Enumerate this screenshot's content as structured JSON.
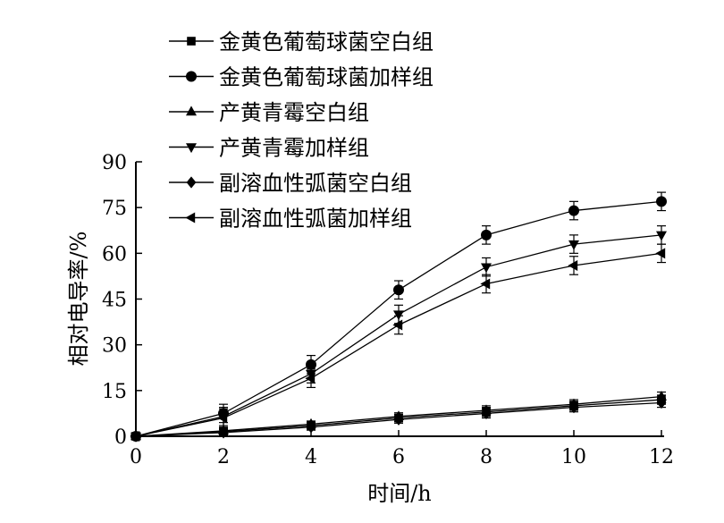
{
  "chart_data": {
    "type": "line",
    "title": "",
    "xlabel": "时间/h",
    "ylabel": "相对电导率/%",
    "x": [
      0,
      2,
      4,
      6,
      8,
      10,
      12
    ],
    "xticks": [
      "0",
      "2",
      "4",
      "6",
      "8",
      "10",
      "12"
    ],
    "yticks": [
      "0",
      "15",
      "30",
      "45",
      "60",
      "75",
      "90"
    ],
    "xlim": [
      0,
      12
    ],
    "ylim": [
      0,
      90
    ],
    "grid": false,
    "legend_position": "top-left",
    "error_bars": true,
    "series": [
      {
        "name": "金黄色葡萄球菌空白组",
        "marker": "square",
        "values": [
          0,
          1.5,
          3.5,
          6,
          8,
          10,
          12
        ],
        "errors": [
          0.8,
          1,
          1,
          1.2,
          1.5,
          1.5,
          1.5
        ]
      },
      {
        "name": "金黄色葡萄球菌加样组",
        "marker": "circle",
        "values": [
          0,
          7.5,
          23.5,
          48,
          66,
          74,
          77
        ],
        "errors": [
          1,
          3,
          3,
          3,
          3,
          3,
          3
        ]
      },
      {
        "name": "产黄青霉空白组",
        "marker": "triangle-up",
        "values": [
          0,
          1.8,
          4,
          6.5,
          8.5,
          10.5,
          13
        ],
        "errors": [
          0.8,
          1,
          1,
          1.2,
          1.5,
          1.5,
          1.5
        ]
      },
      {
        "name": "产黄青霉加样组",
        "marker": "triangle-down",
        "values": [
          0,
          6.5,
          20.5,
          40,
          55.5,
          63,
          66
        ],
        "errors": [
          1,
          3,
          3,
          3,
          3,
          3,
          3
        ]
      },
      {
        "name": "副溶血性弧菌空白组",
        "marker": "diamond",
        "values": [
          0,
          1.2,
          3,
          5.5,
          7.5,
          9.5,
          11
        ],
        "errors": [
          0.8,
          1,
          1,
          1.2,
          1.5,
          1.5,
          1.5
        ]
      },
      {
        "name": "副溶血性弧菌加样组",
        "marker": "triangle-left",
        "values": [
          0,
          6,
          19,
          36.5,
          50,
          56,
          60
        ],
        "errors": [
          1,
          3,
          3,
          3,
          3,
          3,
          3
        ]
      }
    ]
  }
}
